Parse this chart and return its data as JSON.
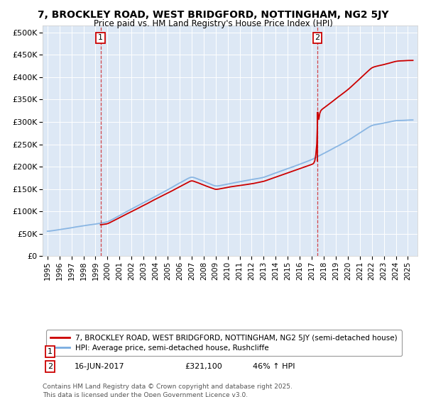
{
  "title": "7, BROCKLEY ROAD, WEST BRIDGFORD, NOTTINGHAM, NG2 5JY",
  "subtitle": "Price paid vs. HM Land Registry's House Price Index (HPI)",
  "bg_color": "#ffffff",
  "plot_bg_color": "#dde8f5",
  "yticks": [
    0,
    50000,
    100000,
    150000,
    200000,
    250000,
    300000,
    350000,
    400000,
    450000,
    500000
  ],
  "ylim": [
    0,
    515000
  ],
  "xlim_left": 1994.6,
  "xlim_right": 2025.8,
  "purchase1": {
    "date_num": 1999.42,
    "price": 69750,
    "label": "1"
  },
  "purchase2": {
    "date_num": 2017.46,
    "price": 321100,
    "label": "2"
  },
  "legend_property": "7, BROCKLEY ROAD, WEST BRIDGFORD, NOTTINGHAM, NG2 5JY (semi-detached house)",
  "legend_hpi": "HPI: Average price, semi-detached house, Rushcliffe",
  "property_color": "#cc0000",
  "hpi_color": "#7aade0",
  "footer": "Contains HM Land Registry data © Crown copyright and database right 2025.\nThis data is licensed under the Open Government Licence v3.0."
}
